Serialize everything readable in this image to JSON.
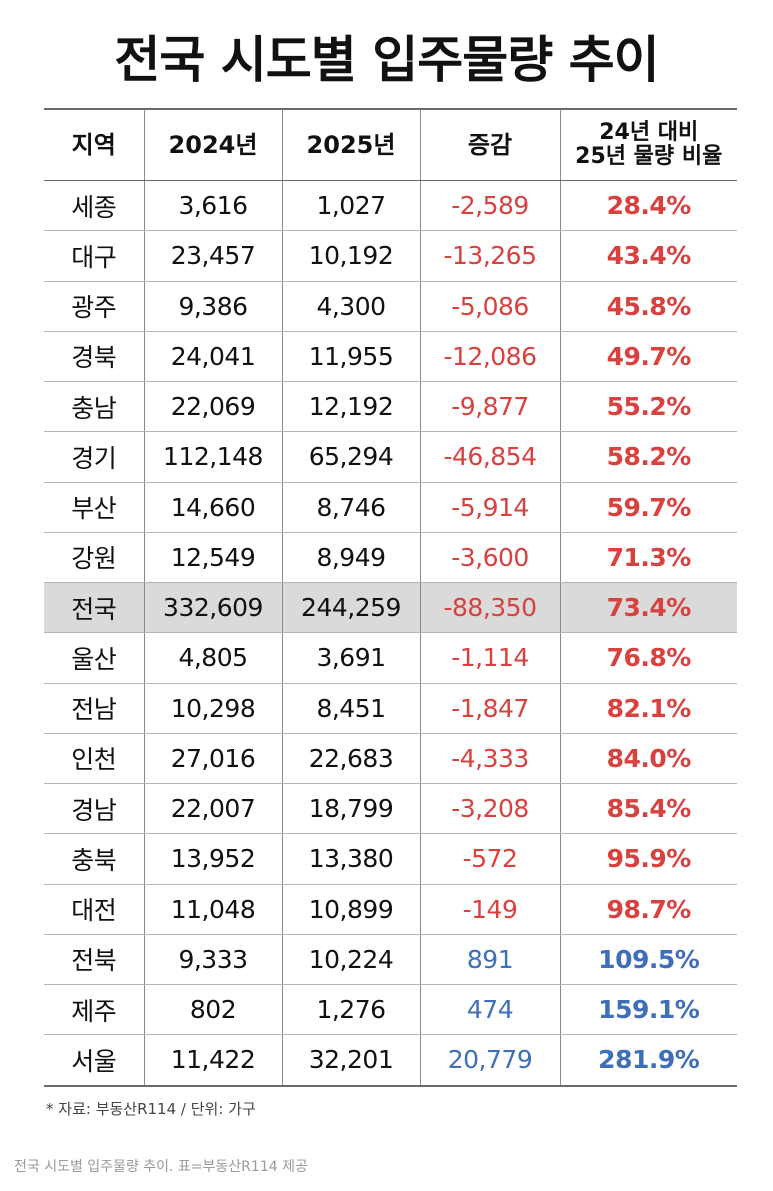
{
  "title": "전국 시도별 입주물량 추이",
  "table": {
    "headers": {
      "region": "지역",
      "y2024": "2024년",
      "y2025": "2025년",
      "change": "증감",
      "ratio_line1": "24년 대비",
      "ratio_line2": "25년 물량 비율"
    },
    "rows": [
      {
        "region": "세종",
        "y2024": "3,616",
        "y2025": "1,027",
        "change": "-2,589",
        "ratio": "28.4%"
      },
      {
        "region": "대구",
        "y2024": "23,457",
        "y2025": "10,192",
        "change": "-13,265",
        "ratio": "43.4%"
      },
      {
        "region": "광주",
        "y2024": "9,386",
        "y2025": "4,300",
        "change": "-5,086",
        "ratio": "45.8%"
      },
      {
        "region": "경북",
        "y2024": "24,041",
        "y2025": "11,955",
        "change": "-12,086",
        "ratio": "49.7%"
      },
      {
        "region": "충남",
        "y2024": "22,069",
        "y2025": "12,192",
        "change": "-9,877",
        "ratio": "55.2%"
      },
      {
        "region": "경기",
        "y2024": "112,148",
        "y2025": "65,294",
        "change": "-46,854",
        "ratio": "58.2%"
      },
      {
        "region": "부산",
        "y2024": "14,660",
        "y2025": "8,746",
        "change": "-5,914",
        "ratio": "59.7%"
      },
      {
        "region": "강원",
        "y2024": "12,549",
        "y2025": "8,949",
        "change": "-3,600",
        "ratio": "71.3%"
      },
      {
        "region": "전국",
        "y2024": "332,609",
        "y2025": "244,259",
        "change": "-88,350",
        "ratio": "73.4%"
      },
      {
        "region": "울산",
        "y2024": "4,805",
        "y2025": "3,691",
        "change": "-1,114",
        "ratio": "76.8%"
      },
      {
        "region": "전남",
        "y2024": "10,298",
        "y2025": "8,451",
        "change": "-1,847",
        "ratio": "82.1%"
      },
      {
        "region": "인천",
        "y2024": "27,016",
        "y2025": "22,683",
        "change": "-4,333",
        "ratio": "84.0%"
      },
      {
        "region": "경남",
        "y2024": "22,007",
        "y2025": "18,799",
        "change": "-3,208",
        "ratio": "85.4%"
      },
      {
        "region": "충북",
        "y2024": "13,952",
        "y2025": "13,380",
        "change": "-572",
        "ratio": "95.9%"
      },
      {
        "region": "대전",
        "y2024": "11,048",
        "y2025": "10,899",
        "change": "-149",
        "ratio": "98.7%"
      },
      {
        "region": "전북",
        "y2024": "9,333",
        "y2025": "10,224",
        "change": "891",
        "ratio": "109.5%"
      },
      {
        "region": "제주",
        "y2024": "802",
        "y2025": "1,276",
        "change": "474",
        "ratio": "159.1%"
      },
      {
        "region": "서울",
        "y2024": "11,422",
        "y2025": "32,201",
        "change": "20,779",
        "ratio": "281.9%"
      }
    ],
    "highlight_region": "전국"
  },
  "source_note": "* 자료: 부동산R114 / 단위: 가구",
  "caption": "전국 시도별 입주물량 추이. 표=부동산R114 제공",
  "colors": {
    "negative": "#d9413f",
    "positive": "#3f6fb8",
    "highlight_bg": "#dadada"
  }
}
